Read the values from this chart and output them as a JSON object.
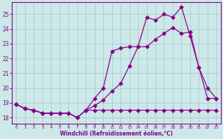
{
  "title": "",
  "xlabel": "Windchill (Refroidissement éolien,°C)",
  "ylabel": "",
  "bg_color": "#cce8e8",
  "grid_color": "#aacccc",
  "line_color": "#880088",
  "xlim": [
    -0.5,
    23.5
  ],
  "ylim": [
    17.6,
    25.8
  ],
  "xticks": [
    0,
    1,
    2,
    3,
    4,
    5,
    6,
    7,
    8,
    9,
    10,
    11,
    12,
    13,
    14,
    15,
    16,
    17,
    18,
    19,
    20,
    21,
    22,
    23
  ],
  "yticks": [
    18,
    19,
    20,
    21,
    22,
    23,
    24,
    25
  ],
  "line1_x": [
    0,
    1,
    2,
    3,
    4,
    5,
    6,
    7,
    8,
    9,
    10,
    11,
    12,
    13,
    14,
    15,
    16,
    17,
    18,
    19,
    20,
    21,
    22,
    23
  ],
  "line1_y": [
    18.9,
    18.6,
    18.5,
    18.3,
    18.3,
    18.3,
    18.3,
    18.0,
    18.5,
    19.3,
    20.0,
    22.5,
    22.7,
    22.8,
    22.8,
    24.8,
    24.6,
    25.0,
    24.8,
    25.5,
    23.5,
    21.4,
    20.0,
    19.3
  ],
  "line2_x": [
    0,
    1,
    2,
    3,
    4,
    5,
    6,
    7,
    8,
    9,
    10,
    11,
    12,
    13,
    14,
    15,
    16,
    17,
    18,
    19,
    20,
    21,
    22,
    23
  ],
  "line2_y": [
    18.9,
    18.6,
    18.5,
    18.3,
    18.3,
    18.3,
    18.3,
    18.0,
    18.5,
    18.8,
    19.2,
    19.8,
    20.3,
    21.5,
    22.8,
    22.8,
    23.3,
    23.7,
    24.1,
    23.7,
    23.8,
    21.4,
    19.3,
    19.3
  ],
  "line3_x": [
    0,
    1,
    2,
    3,
    4,
    5,
    6,
    7,
    8,
    9,
    10,
    11,
    12,
    13,
    14,
    15,
    16,
    17,
    18,
    19,
    20,
    21,
    22,
    23
  ],
  "line3_y": [
    18.9,
    18.6,
    18.5,
    18.3,
    18.3,
    18.3,
    18.3,
    18.0,
    18.5,
    18.5,
    18.5,
    18.5,
    18.5,
    18.5,
    18.5,
    18.5,
    18.5,
    18.5,
    18.5,
    18.5,
    18.5,
    18.5,
    18.5,
    18.5
  ]
}
